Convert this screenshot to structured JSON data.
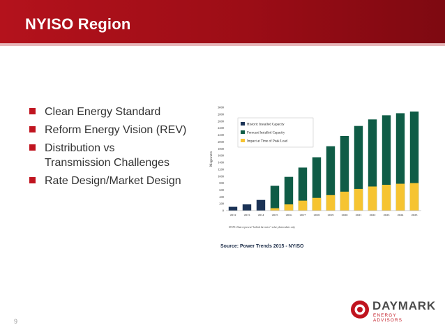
{
  "slide": {
    "title": "NYISO Region",
    "page_number": "9",
    "bullets": [
      "Clean Energy Standard",
      "Reform Energy Vision (REV)",
      "Distribution vs\nTransmission Challenges",
      "Rate Design/Market Design"
    ],
    "source": "Source: Power Trends 2015 -  NYISO",
    "logo": {
      "main": "DAYMARK",
      "sub": "ENERGY ADVISORS"
    }
  },
  "colors": {
    "banner": "#a40f18",
    "accent": "#c0141f",
    "historic": "#1b3356",
    "forecast": "#0f5c46",
    "impact": "#f6c431"
  },
  "chart_data": {
    "type": "bar",
    "title": "",
    "xlabel": "",
    "ylabel": "Megawatts",
    "ylim": [
      0,
      3000
    ],
    "yticks": [
      0,
      200,
      400,
      600,
      800,
      1000,
      1200,
      1400,
      1600,
      1800,
      2000,
      2200,
      2400,
      2600,
      2800,
      3000
    ],
    "categories": [
      "2012",
      "2013",
      "2014",
      "2015",
      "2016",
      "2017",
      "2018",
      "2019",
      "2020",
      "2021",
      "2022",
      "2023",
      "2024",
      "2025"
    ],
    "series": [
      {
        "name": "Historic Installed Capacity",
        "values": [
          110,
          180,
          310,
          null,
          null,
          null,
          null,
          null,
          null,
          null,
          null,
          null,
          null,
          null
        ]
      },
      {
        "name": "Forecast Installed Capacity",
        "values": [
          null,
          null,
          null,
          720,
          980,
          1250,
          1550,
          1870,
          2170,
          2460,
          2650,
          2770,
          2830,
          2880
        ]
      },
      {
        "name": "Impact at Time of Peak Load",
        "values": [
          null,
          null,
          null,
          70,
          180,
          290,
          370,
          450,
          550,
          630,
          700,
          750,
          780,
          800
        ]
      }
    ],
    "legend": "top-left",
    "note": "NOTE: Data represent \"behind the meter\" solar photovoltaic only"
  }
}
